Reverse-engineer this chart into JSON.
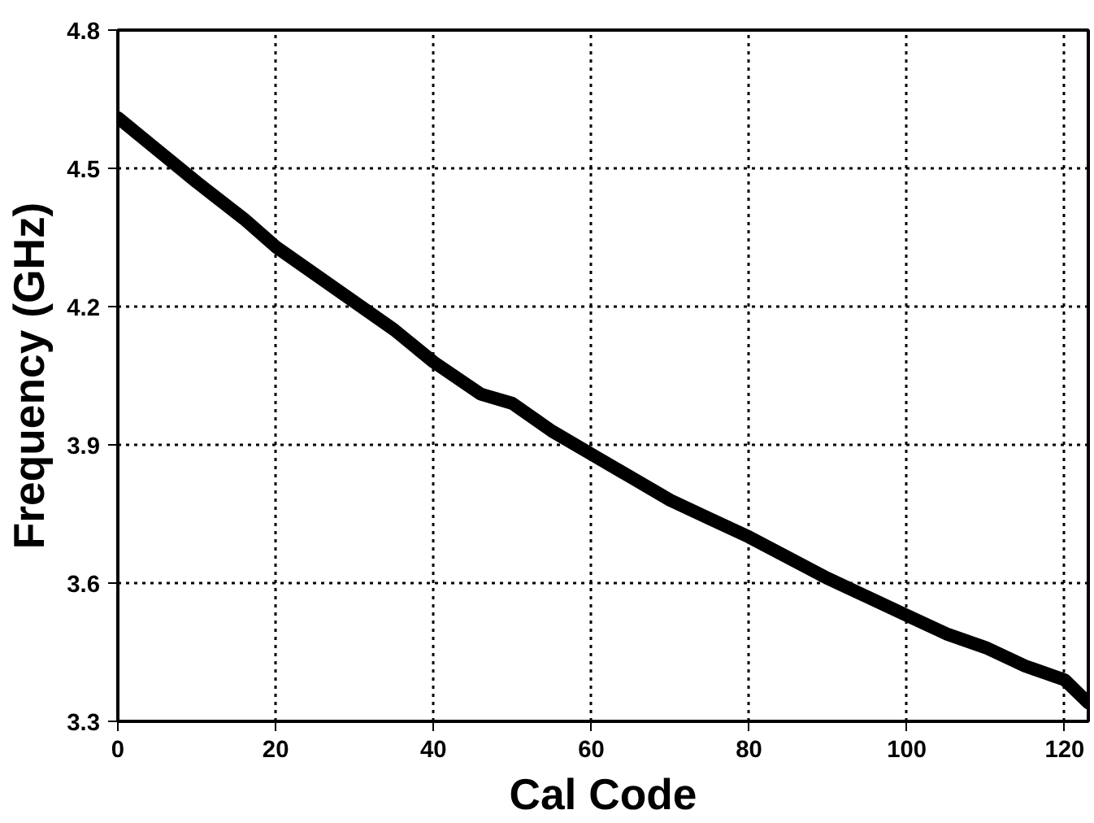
{
  "chart_data": {
    "type": "line",
    "xlabel": "Cal Code",
    "ylabel": "Frequency (GHz)",
    "x": [
      0,
      5,
      10,
      16,
      20,
      25,
      30,
      35,
      40,
      46,
      50,
      55,
      60,
      65,
      70,
      75,
      80,
      85,
      90,
      95,
      100,
      105,
      110,
      115,
      120,
      123
    ],
    "series": [
      {
        "color": "#000000",
        "values": [
          4.61,
          4.54,
          4.47,
          4.39,
          4.33,
          4.27,
          4.21,
          4.15,
          4.08,
          4.01,
          3.99,
          3.93,
          3.88,
          3.83,
          3.78,
          3.74,
          3.7,
          3.655,
          3.61,
          3.57,
          3.53,
          3.49,
          3.46,
          3.42,
          3.39,
          3.34
        ]
      }
    ],
    "xlim": [
      0,
      123
    ],
    "xticks": [
      0,
      20,
      40,
      60,
      80,
      100,
      120
    ],
    "ylim": [
      3.3,
      4.8
    ],
    "yticks": [
      {
        "value": 3.3,
        "label": "3.3"
      },
      {
        "value": 3.6,
        "label": "3.6"
      },
      {
        "value": 3.9,
        "label": "3.9"
      },
      {
        "value": 4.2,
        "label": "4.2"
      },
      {
        "value": 4.5,
        "label": "4.5"
      },
      {
        "value": 4.8,
        "label": "4.8"
      }
    ],
    "grid": true,
    "marker": "none",
    "line_style": "solid"
  }
}
